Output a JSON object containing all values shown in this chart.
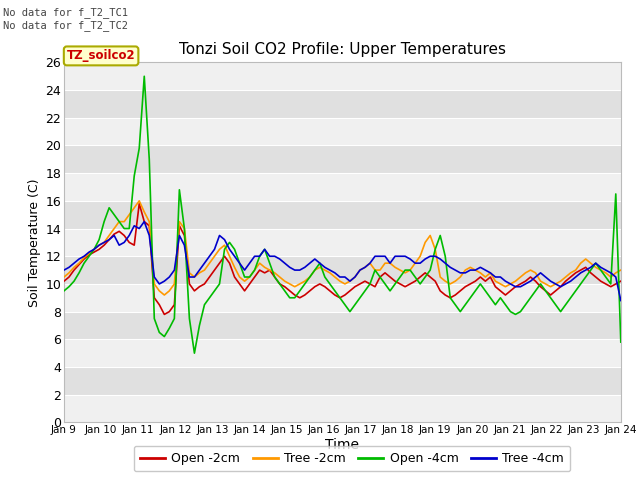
{
  "title": "Tonzi Soil CO2 Profile: Upper Temperatures",
  "xlabel": "Time",
  "ylabel": "Soil Temperature (C)",
  "no_data_notes": [
    "No data for f_T2_TC1",
    "No data for f_T2_TC2"
  ],
  "dataset_label": "TZ_soilco2",
  "ylim": [
    0,
    26
  ],
  "yticks": [
    0,
    2,
    4,
    6,
    8,
    10,
    12,
    14,
    16,
    18,
    20,
    22,
    24,
    26
  ],
  "x_labels": [
    "Jan 9",
    "Jan 10",
    "Jan 11",
    "Jan 12",
    "Jan 13",
    "Jan 14",
    "Jan 15",
    "Jan 16",
    "Jan 17",
    "Jan 18",
    "Jan 19",
    "Jan 20",
    "Jan 21",
    "Jan 22",
    "Jan 23",
    "Jan 24"
  ],
  "line_colors": {
    "open_2cm": "#cc0000",
    "tree_2cm": "#ff9900",
    "open_4cm": "#00bb00",
    "tree_4cm": "#0000cc"
  },
  "legend_labels": [
    "Open -2cm",
    "Tree -2cm",
    "Open -4cm",
    "Tree -4cm"
  ],
  "open_2cm": [
    10.2,
    10.5,
    11.0,
    11.4,
    11.8,
    12.1,
    12.3,
    12.5,
    12.8,
    13.2,
    13.6,
    13.8,
    13.5,
    13.0,
    12.8,
    15.8,
    14.5,
    14.2,
    9.0,
    8.5,
    7.8,
    8.0,
    8.5,
    14.2,
    13.5,
    10.0,
    9.5,
    9.8,
    10.0,
    10.5,
    11.0,
    11.5,
    12.0,
    11.5,
    10.5,
    10.0,
    9.5,
    10.0,
    10.5,
    11.0,
    10.8,
    11.0,
    10.5,
    10.0,
    9.8,
    9.5,
    9.2,
    9.0,
    9.2,
    9.5,
    9.8,
    10.0,
    9.8,
    9.5,
    9.2,
    9.0,
    9.2,
    9.5,
    9.8,
    10.0,
    10.2,
    10.0,
    9.8,
    10.5,
    10.8,
    10.5,
    10.2,
    10.0,
    9.8,
    10.0,
    10.2,
    10.5,
    10.8,
    10.5,
    10.2,
    9.5,
    9.2,
    9.0,
    9.2,
    9.5,
    9.8,
    10.0,
    10.2,
    10.5,
    10.2,
    10.5,
    9.8,
    9.5,
    9.2,
    9.5,
    9.8,
    10.0,
    10.2,
    10.5,
    10.2,
    9.8,
    9.5,
    9.2,
    9.5,
    9.8,
    10.2,
    10.5,
    10.8,
    11.0,
    11.2,
    10.8,
    10.5,
    10.2,
    10.0,
    9.8,
    10.0,
    10.2
  ],
  "tree_2cm": [
    10.5,
    10.8,
    11.2,
    11.5,
    11.9,
    12.2,
    12.5,
    12.8,
    13.0,
    13.5,
    14.0,
    14.5,
    14.5,
    15.0,
    15.5,
    16.0,
    15.2,
    14.5,
    10.0,
    9.5,
    9.2,
    9.5,
    10.0,
    14.5,
    14.0,
    10.8,
    10.5,
    10.8,
    11.0,
    11.5,
    12.0,
    12.5,
    12.8,
    12.0,
    11.2,
    10.5,
    10.2,
    10.5,
    11.0,
    11.5,
    11.2,
    11.0,
    10.8,
    10.5,
    10.2,
    10.0,
    9.8,
    10.0,
    10.2,
    10.5,
    11.0,
    11.2,
    11.0,
    10.8,
    10.5,
    10.2,
    10.0,
    10.2,
    10.5,
    11.0,
    11.2,
    11.5,
    11.0,
    11.0,
    11.5,
    11.5,
    11.2,
    11.0,
    10.8,
    11.0,
    11.5,
    12.0,
    13.0,
    13.5,
    12.5,
    10.5,
    10.2,
    10.0,
    10.2,
    10.5,
    11.0,
    11.2,
    11.0,
    10.8,
    10.5,
    10.8,
    10.2,
    10.0,
    9.8,
    10.0,
    10.2,
    10.5,
    10.8,
    11.0,
    10.8,
    10.2,
    10.0,
    9.8,
    10.0,
    10.2,
    10.5,
    10.8,
    11.0,
    11.5,
    11.8,
    11.5,
    11.2,
    11.0,
    10.8,
    10.5,
    10.8,
    11.0
  ],
  "open_4cm": [
    9.5,
    9.8,
    10.2,
    10.8,
    11.5,
    12.0,
    12.5,
    13.2,
    14.5,
    15.5,
    15.0,
    14.5,
    14.0,
    14.0,
    17.8,
    19.8,
    25.0,
    19.0,
    7.5,
    6.5,
    6.2,
    6.8,
    7.5,
    16.8,
    14.0,
    7.5,
    5.0,
    7.0,
    8.5,
    9.0,
    9.5,
    10.0,
    12.5,
    13.0,
    12.5,
    11.5,
    10.5,
    10.5,
    11.0,
    12.0,
    12.5,
    11.5,
    10.5,
    10.0,
    9.5,
    9.0,
    9.0,
    9.5,
    10.0,
    10.5,
    11.0,
    11.5,
    10.5,
    10.0,
    9.5,
    9.0,
    8.5,
    8.0,
    8.5,
    9.0,
    9.5,
    10.0,
    11.0,
    10.5,
    10.0,
    9.5,
    10.0,
    10.5,
    11.0,
    11.0,
    10.5,
    10.0,
    10.5,
    11.0,
    12.5,
    13.5,
    12.0,
    9.0,
    8.5,
    8.0,
    8.5,
    9.0,
    9.5,
    10.0,
    9.5,
    9.0,
    8.5,
    9.0,
    8.5,
    8.0,
    7.8,
    8.0,
    8.5,
    9.0,
    9.5,
    10.0,
    9.5,
    9.0,
    8.5,
    8.0,
    8.5,
    9.0,
    9.5,
    10.0,
    10.5,
    11.0,
    11.5,
    11.0,
    10.5,
    10.0,
    16.5,
    5.8
  ],
  "tree_4cm": [
    11.0,
    11.2,
    11.5,
    11.8,
    12.0,
    12.3,
    12.5,
    12.8,
    13.0,
    13.2,
    13.5,
    12.8,
    13.0,
    13.5,
    14.2,
    14.0,
    14.5,
    13.5,
    10.5,
    10.0,
    10.2,
    10.5,
    11.0,
    13.5,
    12.8,
    10.5,
    10.5,
    11.0,
    11.5,
    12.0,
    12.5,
    13.5,
    13.2,
    12.5,
    12.0,
    11.5,
    11.0,
    11.5,
    12.0,
    12.0,
    12.5,
    12.0,
    12.0,
    11.8,
    11.5,
    11.2,
    11.0,
    11.0,
    11.2,
    11.5,
    11.8,
    11.5,
    11.2,
    11.0,
    10.8,
    10.5,
    10.5,
    10.2,
    10.5,
    11.0,
    11.2,
    11.5,
    12.0,
    12.0,
    12.0,
    11.5,
    12.0,
    12.0,
    12.0,
    11.8,
    11.5,
    11.5,
    11.8,
    12.0,
    12.0,
    11.8,
    11.5,
    11.2,
    11.0,
    10.8,
    10.8,
    11.0,
    11.0,
    11.2,
    11.0,
    10.8,
    10.5,
    10.5,
    10.2,
    10.0,
    9.8,
    9.8,
    10.0,
    10.2,
    10.5,
    10.8,
    10.5,
    10.2,
    10.0,
    9.8,
    10.0,
    10.2,
    10.5,
    10.8,
    11.0,
    11.2,
    11.5,
    11.2,
    11.0,
    10.8,
    10.5,
    8.8
  ]
}
